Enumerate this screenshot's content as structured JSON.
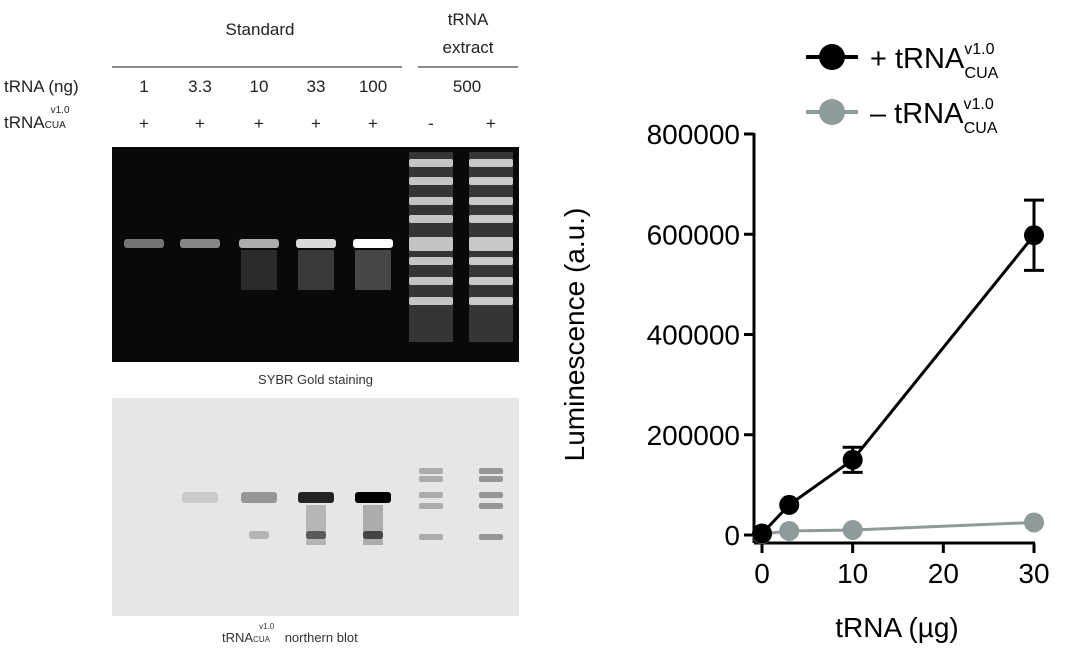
{
  "gel_header": {
    "standard_label": "Standard",
    "extract_label_line1": "tRNA",
    "extract_label_line2": "extract",
    "row1_label": "tRNA (ng)",
    "row2_label_main": "tRNA",
    "row2_label_sub": "CUA",
    "row2_label_sup": "v1.0",
    "amounts": [
      "1",
      "3.3",
      "10",
      "33",
      "100",
      "500"
    ],
    "plus_minus": [
      "+",
      "+",
      "+",
      "+",
      "+",
      "-",
      "+"
    ]
  },
  "gel": {
    "caption": "SYBR Gold staining",
    "lane_intensities": [
      0.25,
      0.35,
      0.55,
      0.8,
      1.0,
      0.9,
      0.95
    ]
  },
  "blot": {
    "caption_main": "tRNA",
    "caption_sub": "CUA",
    "caption_sup": "v1.0",
    "caption_tail": "northern blot",
    "lane_intensities": [
      0.0,
      0.12,
      0.35,
      0.85,
      1.0,
      0.25,
      0.35
    ]
  },
  "chart_data": {
    "type": "line",
    "xlabel": "tRNA (µg)",
    "ylabel": "Luminescence (a.u.)",
    "xlim": [
      0,
      30
    ],
    "ylim": [
      0,
      800000
    ],
    "xticks": [
      "0",
      "10",
      "20",
      "30"
    ],
    "yticks": [
      "0",
      "200000",
      "400000",
      "600000",
      "800000"
    ],
    "legend_position": "top-right",
    "grid": false,
    "series": [
      {
        "name": "+ tRNA",
        "name_sup": "v1.0",
        "name_sub": "CUA",
        "color": "#000000",
        "x": [
          0,
          3,
          10,
          30
        ],
        "y": [
          3000,
          60000,
          150000,
          598000
        ],
        "err": [
          0,
          0,
          25000,
          70000
        ]
      },
      {
        "name": "– tRNA",
        "name_sup": "v1.0",
        "name_sub": "CUA",
        "color": "#8e9b9a",
        "x": [
          0,
          3,
          10,
          30
        ],
        "y": [
          2000,
          8000,
          10000,
          25000
        ],
        "err": [
          0,
          0,
          0,
          0
        ]
      }
    ]
  }
}
